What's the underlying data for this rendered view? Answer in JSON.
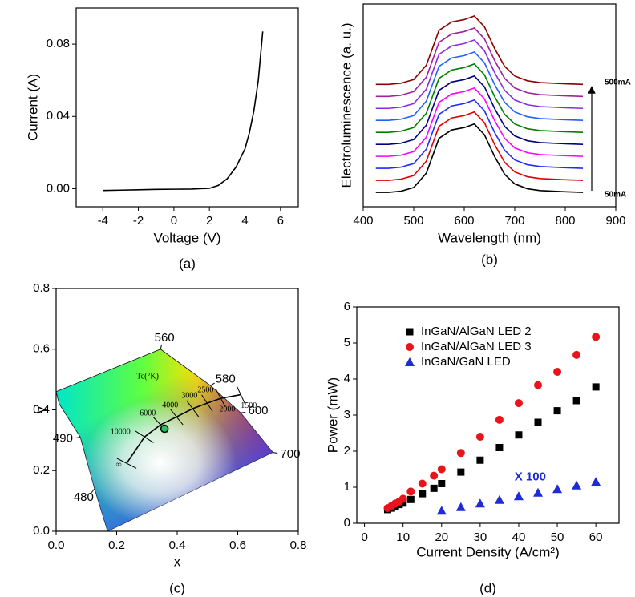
{
  "chart_data": [
    {
      "type": "line",
      "caption": "(a)",
      "x_label": "Voltage (V)",
      "y_label": "Current (A)",
      "xlim": [
        -5.5,
        7
      ],
      "ylim": [
        -0.01,
        0.1
      ],
      "xticks": [
        -4,
        -2,
        0,
        2,
        4,
        6
      ],
      "yticks": [
        {
          "value": 0,
          "label": "0.00"
        },
        {
          "value": 0.04,
          "label": "0.04"
        },
        {
          "value": 0.08,
          "label": "0.08"
        }
      ],
      "series": [
        {
          "color": "#000000",
          "x": [
            -4,
            -3,
            -2,
            -1,
            0,
            1,
            2,
            2.5,
            3,
            3.5,
            4,
            4.25,
            4.5,
            4.75,
            5
          ],
          "values": [
            -0.001,
            -0.0008,
            -0.0006,
            -0.0004,
            -0.0003,
            -0.0002,
            0.0002,
            0.0018,
            0.0055,
            0.012,
            0.022,
            0.031,
            0.043,
            0.06,
            0.087
          ]
        }
      ]
    },
    {
      "type": "line",
      "caption": "(b)",
      "x_label": "Wavelength (nm)",
      "y_label": "Electroluminescence (a. u.)",
      "xlim": [
        400,
        900
      ],
      "ylim": [
        -0.2,
        16.7
      ],
      "xticks": [
        400,
        500,
        600,
        700,
        800,
        900
      ],
      "annotations": [
        "500mA",
        "50mA"
      ],
      "x": [
        425,
        450,
        475,
        500,
        525,
        550,
        575,
        600,
        620,
        640,
        660,
        680,
        700,
        725,
        750,
        775,
        800,
        835
      ],
      "series": [
        {
          "color": "#000000",
          "values": [
            1,
            1,
            1.1,
            1.4,
            2.6,
            5.5,
            6.2,
            6.4,
            6.7,
            5.8,
            4,
            2.5,
            1.7,
            1.3,
            1.15,
            1.1,
            1.05,
            1
          ]
        },
        {
          "color": "#e00000",
          "values": [
            2,
            2,
            2.1,
            2.4,
            3.6,
            6.5,
            7.2,
            7.4,
            7.7,
            6.8,
            5,
            3.5,
            2.7,
            2.3,
            2.15,
            2.1,
            2.05,
            2
          ]
        },
        {
          "color": "#1a2cff",
          "values": [
            3,
            3,
            3.1,
            3.4,
            4.6,
            7.5,
            8.2,
            8.4,
            8.7,
            7.8,
            6,
            4.5,
            3.7,
            3.3,
            3.15,
            3.1,
            3.05,
            3
          ]
        },
        {
          "color": "#ff00ff",
          "values": [
            4,
            4,
            4.1,
            4.4,
            5.6,
            8.5,
            9.2,
            9.4,
            9.7,
            8.8,
            7,
            5.5,
            4.7,
            4.3,
            4.15,
            4.1,
            4.05,
            4
          ]
        },
        {
          "color": "#000080",
          "values": [
            5,
            5,
            5.1,
            5.4,
            6.6,
            9.5,
            10.2,
            10.4,
            10.7,
            9.8,
            8,
            6.5,
            5.7,
            5.3,
            5.15,
            5.1,
            5.05,
            5
          ]
        },
        {
          "color": "#008000",
          "values": [
            6,
            6,
            6.1,
            6.4,
            7.6,
            10.5,
            11.2,
            11.4,
            11.7,
            10.8,
            9,
            7.5,
            6.7,
            6.3,
            6.15,
            6.1,
            6.05,
            6
          ]
        },
        {
          "color": "#2060ff",
          "values": [
            7,
            7,
            7.1,
            7.4,
            8.6,
            11.5,
            12.2,
            12.4,
            12.7,
            11.8,
            10,
            8.5,
            7.7,
            7.3,
            7.15,
            7.1,
            7.05,
            7
          ]
        },
        {
          "color": "#8a2be2",
          "values": [
            8,
            8,
            8.1,
            8.4,
            9.6,
            12.5,
            13.2,
            13.4,
            13.7,
            12.8,
            11,
            9.5,
            8.7,
            8.3,
            8.15,
            8.1,
            8.05,
            8
          ]
        },
        {
          "color": "#a020a0",
          "values": [
            9,
            9,
            9.1,
            9.4,
            10.6,
            13.5,
            14.2,
            14.4,
            14.7,
            13.8,
            12,
            10.5,
            9.7,
            9.3,
            9.15,
            9.1,
            9.05,
            9
          ]
        },
        {
          "color": "#8b0000",
          "values": [
            10,
            10,
            10.1,
            10.4,
            11.6,
            14.5,
            15.2,
            15.4,
            15.7,
            14.8,
            13,
            11.5,
            10.7,
            10.3,
            10.15,
            10.1,
            10.05,
            10
          ]
        }
      ]
    },
    {
      "type": "chromaticity",
      "caption": "(c)",
      "x_label": "x",
      "y_label": "y",
      "xlim": [
        0,
        0.8
      ],
      "ylim": [
        0,
        0.8
      ],
      "xticks": [
        {
          "value": 0,
          "label": "0.0"
        },
        {
          "value": 0.2,
          "label": "0.2"
        },
        {
          "value": 0.4,
          "label": "0.4"
        },
        {
          "value": 0.6,
          "label": "0.6"
        },
        {
          "value": 0.8,
          "label": "0.8"
        }
      ],
      "yticks": [
        {
          "value": 0,
          "label": "0.0"
        },
        {
          "value": 0.2,
          "label": "0.2"
        },
        {
          "value": 0.4,
          "label": "0.4"
        },
        {
          "value": 0.6,
          "label": "0.6"
        },
        {
          "value": 0.8,
          "label": "0.8"
        }
      ],
      "locus": {
        "x": [
          0.345,
          0.51,
          0.61,
          0.716,
          0.17,
          0.127,
          0.08,
          0.01,
          0
        ],
        "y": [
          0.6,
          0.48,
          0.39,
          0.26,
          0,
          0.14,
          0.31,
          0.42,
          0.46
        ],
        "labels": [
          "560",
          "580",
          "600",
          "700",
          null,
          "480",
          "490",
          null,
          null
        ]
      },
      "planckian": {
        "title": "Tc(°K)",
        "x": [
          0.61,
          0.544,
          0.499,
          0.451,
          0.398,
          0.345,
          0.292,
          0.233
        ],
        "y": [
          0.45,
          0.438,
          0.422,
          0.404,
          0.377,
          0.351,
          0.311,
          0.224
        ],
        "labels": [
          "1500",
          "2000",
          "2500",
          "3000",
          "4000",
          "6000",
          "10000",
          "∞"
        ]
      },
      "point": {
        "x": 0.358,
        "y": 0.338,
        "color": "#22c55e"
      }
    },
    {
      "type": "scatter",
      "caption": "(d)",
      "x_label": "Current Density (A/cm²)",
      "y_label": "Power (mW)",
      "xlim": [
        -2,
        66
      ],
      "ylim": [
        0,
        6
      ],
      "xticks": [
        0,
        10,
        20,
        30,
        40,
        50,
        60
      ],
      "yticks": [
        0,
        1,
        2,
        3,
        4,
        5,
        6
      ],
      "legend": "upper left",
      "annotations": [
        "X 100"
      ],
      "series": [
        {
          "name": "InGaN/AlGaN LED 2",
          "color": "#000000",
          "marker": "square",
          "x": [
            6,
            7,
            8,
            9,
            10,
            12,
            15,
            18,
            20,
            25,
            30,
            35,
            40,
            45,
            50,
            55,
            60
          ],
          "values": [
            0.38,
            0.42,
            0.47,
            0.52,
            0.56,
            0.66,
            0.82,
            0.97,
            1.1,
            1.42,
            1.75,
            2.1,
            2.45,
            2.8,
            3.12,
            3.4,
            3.78
          ]
        },
        {
          "name": "InGaN/AlGaN LED 3",
          "color": "#e8141b",
          "marker": "circle",
          "x": [
            6,
            7,
            8,
            9,
            10,
            12,
            15,
            18,
            20,
            25,
            30,
            35,
            40,
            45,
            50,
            55,
            60
          ],
          "values": [
            0.42,
            0.48,
            0.55,
            0.6,
            0.68,
            0.88,
            1.1,
            1.32,
            1.5,
            1.95,
            2.4,
            2.87,
            3.33,
            3.83,
            4.2,
            4.67,
            5.17
          ]
        },
        {
          "name": "InGaN/GaN LED",
          "color": "#1f2bd6",
          "marker": "triangle",
          "x": [
            20,
            25,
            30,
            35,
            40,
            45,
            50,
            55,
            60
          ],
          "values": [
            0.35,
            0.45,
            0.55,
            0.65,
            0.75,
            0.85,
            0.95,
            1.05,
            1.15
          ]
        }
      ]
    }
  ]
}
